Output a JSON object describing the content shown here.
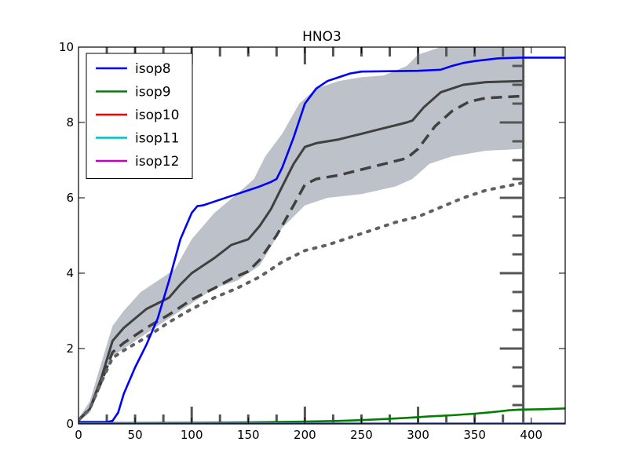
{
  "chart_data": {
    "type": "line",
    "title": "HNO3",
    "xlabel": "",
    "ylabel": "",
    "xlim": [
      0,
      430
    ],
    "ylim": [
      0,
      10
    ],
    "x_ticks": [
      0,
      50,
      100,
      150,
      200,
      250,
      300,
      350,
      400
    ],
    "y_ticks": [
      0,
      2,
      4,
      6,
      8,
      10
    ],
    "grid": false,
    "legend_position": "top-left",
    "series": [
      {
        "name": "isop8",
        "color": "#0000ff",
        "points": [
          [
            0,
            0.05
          ],
          [
            25,
            0.05
          ],
          [
            30,
            0.08
          ],
          [
            35,
            0.3
          ],
          [
            40,
            0.8
          ],
          [
            50,
            1.5
          ],
          [
            60,
            2.1
          ],
          [
            70,
            2.8
          ],
          [
            80,
            3.8
          ],
          [
            90,
            4.9
          ],
          [
            100,
            5.6
          ],
          [
            105,
            5.78
          ],
          [
            110,
            5.8
          ],
          [
            120,
            5.9
          ],
          [
            140,
            6.1
          ],
          [
            160,
            6.3
          ],
          [
            170,
            6.42
          ],
          [
            175,
            6.5
          ],
          [
            180,
            6.8
          ],
          [
            190,
            7.6
          ],
          [
            200,
            8.5
          ],
          [
            210,
            8.9
          ],
          [
            220,
            9.1
          ],
          [
            230,
            9.2
          ],
          [
            240,
            9.3
          ],
          [
            250,
            9.35
          ],
          [
            275,
            9.36
          ],
          [
            300,
            9.37
          ],
          [
            320,
            9.4
          ],
          [
            330,
            9.5
          ],
          [
            340,
            9.58
          ],
          [
            350,
            9.63
          ],
          [
            370,
            9.7
          ],
          [
            390,
            9.72
          ],
          [
            430,
            9.72
          ]
        ]
      },
      {
        "name": "isop9",
        "color": "#008000",
        "points": [
          [
            0,
            0.02
          ],
          [
            100,
            0.03
          ],
          [
            150,
            0.04
          ],
          [
            200,
            0.06
          ],
          [
            230,
            0.08
          ],
          [
            250,
            0.1
          ],
          [
            270,
            0.13
          ],
          [
            290,
            0.16
          ],
          [
            310,
            0.2
          ],
          [
            330,
            0.23
          ],
          [
            350,
            0.27
          ],
          [
            365,
            0.31
          ],
          [
            380,
            0.36
          ],
          [
            390,
            0.38
          ],
          [
            410,
            0.39
          ],
          [
            430,
            0.41
          ]
        ]
      },
      {
        "name": "isop10",
        "color": "#ff0000",
        "points": [
          [
            0,
            0.01
          ],
          [
            430,
            0.01
          ]
        ]
      },
      {
        "name": "isop11",
        "color": "#00bfbf",
        "points": [
          [
            0,
            0.01
          ],
          [
            430,
            0.01
          ]
        ]
      },
      {
        "name": "isop12",
        "color": "#bf00bf",
        "points": [
          [
            0,
            0.0
          ],
          [
            430,
            0.0
          ]
        ]
      }
    ],
    "background_image": {
      "x_range": [
        0,
        393
      ],
      "reference_band": {
        "color": "#b9bec6",
        "upper": [
          [
            0,
            0.15
          ],
          [
            10,
            0.6
          ],
          [
            20,
            1.6
          ],
          [
            30,
            2.6
          ],
          [
            40,
            3.0
          ],
          [
            55,
            3.5
          ],
          [
            70,
            3.8
          ],
          [
            85,
            4.1
          ],
          [
            100,
            4.9
          ],
          [
            120,
            5.6
          ],
          [
            140,
            6.1
          ],
          [
            155,
            6.5
          ],
          [
            165,
            7.1
          ],
          [
            180,
            7.7
          ],
          [
            195,
            8.5
          ],
          [
            210,
            8.9
          ],
          [
            230,
            9.1
          ],
          [
            250,
            9.2
          ],
          [
            270,
            9.25
          ],
          [
            290,
            9.5
          ],
          [
            300,
            9.8
          ],
          [
            320,
            10.0
          ],
          [
            393,
            10.0
          ]
        ],
        "lower": [
          [
            0,
            0.05
          ],
          [
            10,
            0.3
          ],
          [
            20,
            1.0
          ],
          [
            30,
            1.8
          ],
          [
            45,
            2.1
          ],
          [
            60,
            2.4
          ],
          [
            80,
            2.8
          ],
          [
            100,
            3.2
          ],
          [
            120,
            3.6
          ],
          [
            140,
            3.8
          ],
          [
            160,
            4.2
          ],
          [
            180,
            5.2
          ],
          [
            200,
            5.8
          ],
          [
            220,
            6.0
          ],
          [
            250,
            6.1
          ],
          [
            280,
            6.3
          ],
          [
            295,
            6.5
          ],
          [
            310,
            6.9
          ],
          [
            330,
            7.1
          ],
          [
            360,
            7.25
          ],
          [
            393,
            7.3
          ]
        ]
      },
      "median_solid": {
        "color": "#404040",
        "points": [
          [
            0,
            0.1
          ],
          [
            10,
            0.4
          ],
          [
            20,
            1.2
          ],
          [
            30,
            2.2
          ],
          [
            40,
            2.55
          ],
          [
            50,
            2.8
          ],
          [
            60,
            3.05
          ],
          [
            70,
            3.2
          ],
          [
            80,
            3.35
          ],
          [
            90,
            3.7
          ],
          [
            100,
            4.0
          ],
          [
            110,
            4.2
          ],
          [
            120,
            4.4
          ],
          [
            135,
            4.75
          ],
          [
            150,
            4.9
          ],
          [
            160,
            5.25
          ],
          [
            170,
            5.7
          ],
          [
            180,
            6.3
          ],
          [
            190,
            6.9
          ],
          [
            200,
            7.35
          ],
          [
            210,
            7.45
          ],
          [
            230,
            7.55
          ],
          [
            250,
            7.7
          ],
          [
            270,
            7.85
          ],
          [
            290,
            8.0
          ],
          [
            295,
            8.05
          ],
          [
            305,
            8.4
          ],
          [
            320,
            8.8
          ],
          [
            340,
            9.0
          ],
          [
            360,
            9.07
          ],
          [
            393,
            9.1
          ]
        ]
      },
      "mean_dashed": {
        "color": "#404040",
        "points": [
          [
            0,
            0.1
          ],
          [
            10,
            0.4
          ],
          [
            20,
            1.1
          ],
          [
            30,
            1.9
          ],
          [
            40,
            2.15
          ],
          [
            60,
            2.55
          ],
          [
            80,
            2.9
          ],
          [
            100,
            3.3
          ],
          [
            120,
            3.6
          ],
          [
            135,
            3.85
          ],
          [
            150,
            4.05
          ],
          [
            160,
            4.35
          ],
          [
            175,
            5.0
          ],
          [
            190,
            5.8
          ],
          [
            200,
            6.35
          ],
          [
            210,
            6.5
          ],
          [
            230,
            6.6
          ],
          [
            250,
            6.75
          ],
          [
            270,
            6.9
          ],
          [
            290,
            7.05
          ],
          [
            300,
            7.3
          ],
          [
            315,
            7.9
          ],
          [
            330,
            8.3
          ],
          [
            345,
            8.55
          ],
          [
            360,
            8.65
          ],
          [
            393,
            8.7
          ]
        ]
      },
      "dotted": {
        "color": "#606060",
        "points": [
          [
            0,
            0.1
          ],
          [
            10,
            0.4
          ],
          [
            20,
            1.1
          ],
          [
            30,
            1.75
          ],
          [
            40,
            1.95
          ],
          [
            60,
            2.3
          ],
          [
            80,
            2.7
          ],
          [
            100,
            3.05
          ],
          [
            120,
            3.35
          ],
          [
            140,
            3.6
          ],
          [
            160,
            3.9
          ],
          [
            180,
            4.3
          ],
          [
            200,
            4.6
          ],
          [
            220,
            4.75
          ],
          [
            240,
            4.95
          ],
          [
            260,
            5.15
          ],
          [
            280,
            5.35
          ],
          [
            300,
            5.5
          ],
          [
            320,
            5.75
          ],
          [
            340,
            6.0
          ],
          [
            360,
            6.2
          ],
          [
            393,
            6.4
          ]
        ]
      }
    }
  }
}
